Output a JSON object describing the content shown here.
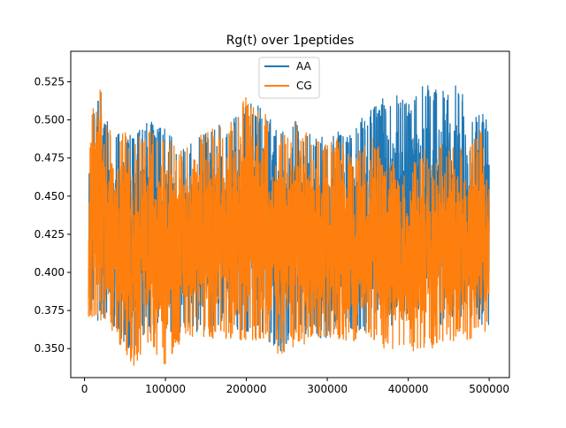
{
  "chart_data": {
    "type": "line",
    "title": "Rg(t) over 1peptides",
    "xlabel": "",
    "ylabel": "",
    "xlim": [
      -17000,
      525000
    ],
    "ylim": [
      0.331,
      0.545
    ],
    "xticks": [
      {
        "value": 0,
        "label": "0"
      },
      {
        "value": 100000,
        "label": "100000"
      },
      {
        "value": 200000,
        "label": "200000"
      },
      {
        "value": 300000,
        "label": "300000"
      },
      {
        "value": 400000,
        "label": "400000"
      },
      {
        "value": 500000,
        "label": "500000"
      }
    ],
    "yticks": [
      {
        "value": 0.35,
        "label": "0.350"
      },
      {
        "value": 0.375,
        "label": "0.375"
      },
      {
        "value": 0.4,
        "label": "0.400"
      },
      {
        "value": 0.425,
        "label": "0.425"
      },
      {
        "value": 0.45,
        "label": "0.450"
      },
      {
        "value": 0.475,
        "label": "0.475"
      },
      {
        "value": 0.5,
        "label": "0.500"
      },
      {
        "value": 0.525,
        "label": "0.525"
      }
    ],
    "grid": false,
    "legend_position": "top-center",
    "series": [
      {
        "name": "AA",
        "color": "#1f77b4",
        "x": [
          5000,
          10000,
          15000,
          18000,
          25000,
          40000,
          60000,
          80000,
          100000,
          120000,
          140000,
          160000,
          180000,
          200000,
          220000,
          240000,
          260000,
          280000,
          300000,
          320000,
          330000,
          340000,
          350000,
          360000,
          370000,
          380000,
          390000,
          400000,
          410000,
          420000,
          430000,
          440000,
          450000,
          458000,
          470000,
          480000,
          490000,
          500000
        ],
        "low": [
          0.37,
          0.37,
          0.365,
          0.37,
          0.37,
          0.36,
          0.345,
          0.355,
          0.36,
          0.36,
          0.36,
          0.36,
          0.36,
          0.36,
          0.36,
          0.345,
          0.355,
          0.36,
          0.355,
          0.365,
          0.36,
          0.36,
          0.36,
          0.37,
          0.37,
          0.365,
          0.37,
          0.365,
          0.37,
          0.37,
          0.37,
          0.365,
          0.37,
          0.37,
          0.37,
          0.365,
          0.365,
          0.365
        ],
        "high": [
          0.46,
          0.51,
          0.5,
          0.535,
          0.5,
          0.495,
          0.49,
          0.5,
          0.495,
          0.48,
          0.49,
          0.495,
          0.5,
          0.515,
          0.51,
          0.49,
          0.5,
          0.49,
          0.49,
          0.495,
          0.49,
          0.5,
          0.505,
          0.51,
          0.515,
          0.52,
          0.515,
          0.51,
          0.52,
          0.525,
          0.52,
          0.52,
          0.52,
          0.527,
          0.515,
          0.5,
          0.505,
          0.5
        ]
      },
      {
        "name": "CG",
        "color": "#ff7f0e",
        "x": [
          5000,
          10000,
          15000,
          18000,
          25000,
          40000,
          60000,
          80000,
          100000,
          120000,
          140000,
          160000,
          180000,
          200000,
          220000,
          240000,
          260000,
          280000,
          300000,
          320000,
          330000,
          340000,
          350000,
          360000,
          370000,
          380000,
          390000,
          400000,
          410000,
          420000,
          430000,
          440000,
          450000,
          458000,
          470000,
          480000,
          490000,
          500000
        ],
        "low": [
          0.365,
          0.37,
          0.365,
          0.37,
          0.365,
          0.355,
          0.336,
          0.35,
          0.338,
          0.355,
          0.355,
          0.355,
          0.355,
          0.355,
          0.355,
          0.345,
          0.35,
          0.355,
          0.355,
          0.355,
          0.355,
          0.355,
          0.355,
          0.355,
          0.35,
          0.35,
          0.35,
          0.345,
          0.35,
          0.35,
          0.35,
          0.355,
          0.355,
          0.355,
          0.355,
          0.355,
          0.36,
          0.36
        ],
        "high": [
          0.46,
          0.517,
          0.51,
          0.537,
          0.5,
          0.495,
          0.49,
          0.495,
          0.49,
          0.48,
          0.49,
          0.495,
          0.5,
          0.515,
          0.51,
          0.49,
          0.5,
          0.49,
          0.485,
          0.49,
          0.475,
          0.48,
          0.49,
          0.49,
          0.47,
          0.475,
          0.46,
          0.47,
          0.475,
          0.48,
          0.47,
          0.49,
          0.48,
          0.49,
          0.48,
          0.49,
          0.495,
          0.455
        ]
      }
    ]
  }
}
